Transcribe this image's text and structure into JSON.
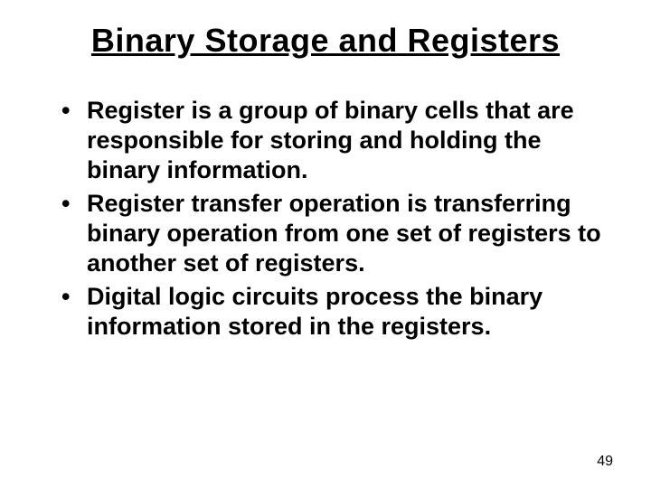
{
  "slide": {
    "title": "Binary Storage and Registers",
    "bullets": [
      "Register is a group of binary cells that are responsible for storing and holding the binary information.",
      "Register transfer operation is transferring binary operation from one set of registers to another set of registers.",
      "Digital logic circuits process the binary information stored in the registers."
    ],
    "page_number": "49"
  },
  "style": {
    "background_color": "#ffffff",
    "text_color": "#000000",
    "title_fontsize": 36,
    "body_fontsize": 27,
    "page_number_fontsize": 16,
    "font_family": "Arial, Helvetica, sans-serif"
  }
}
